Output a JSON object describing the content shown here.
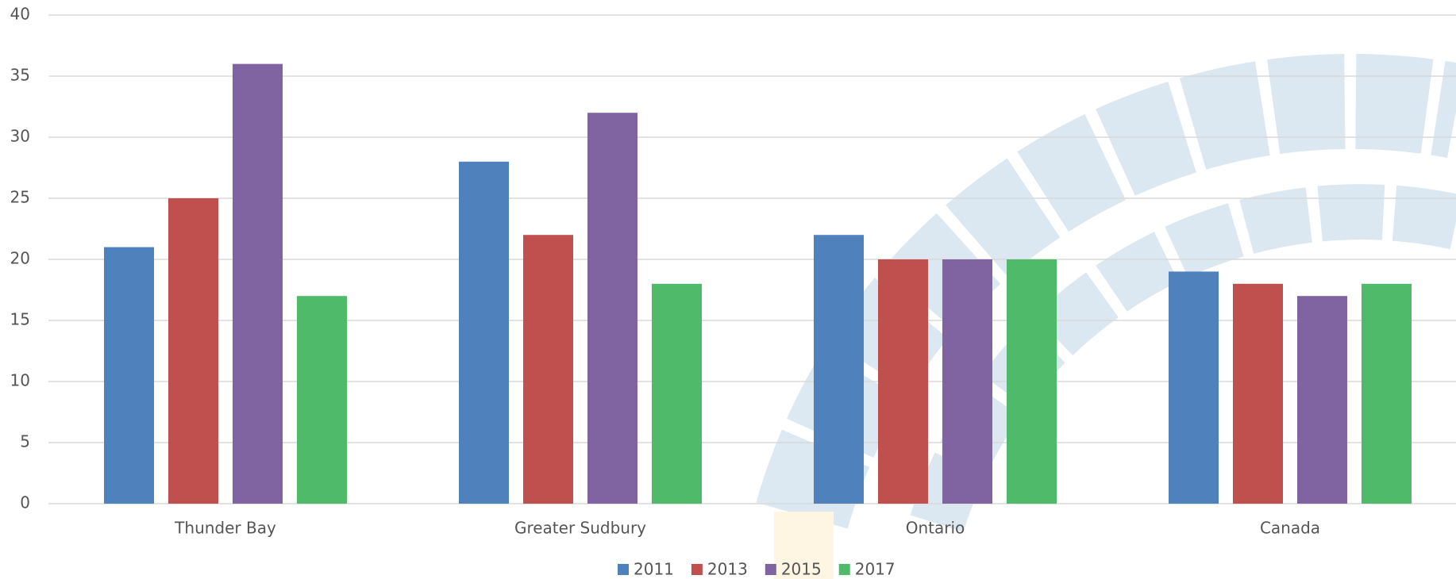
{
  "chart_data": {
    "type": "bar",
    "categories": [
      "Thunder Bay",
      "Greater Sudbury",
      "Ontario",
      "Canada"
    ],
    "series": [
      {
        "name": "2011",
        "color": "#4f81bd",
        "values": [
          21,
          28,
          22,
          19
        ]
      },
      {
        "name": "2013",
        "color": "#c0504d",
        "values": [
          25,
          22,
          20,
          18
        ]
      },
      {
        "name": "2015",
        "color": "#8064a2",
        "values": [
          36,
          32,
          20,
          17
        ]
      },
      {
        "name": "2017",
        "color": "#4fba6a",
        "values": [
          17,
          18,
          20,
          18
        ]
      }
    ],
    "ylim": [
      0,
      40
    ],
    "yticks": [
      0,
      5,
      10,
      15,
      20,
      25,
      30,
      35,
      40
    ],
    "grid": true,
    "legend": "bottom"
  }
}
